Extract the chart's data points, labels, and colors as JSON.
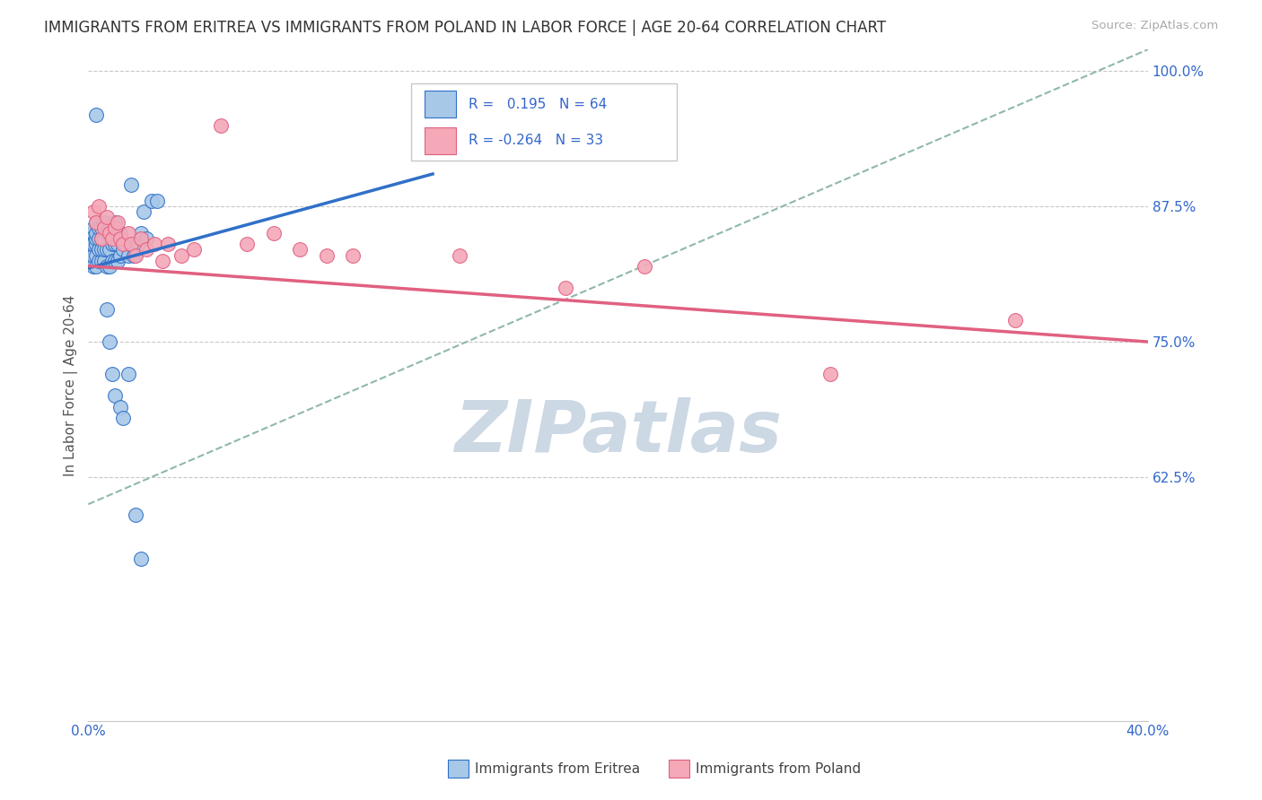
{
  "title": "IMMIGRANTS FROM ERITREA VS IMMIGRANTS FROM POLAND IN LABOR FORCE | AGE 20-64 CORRELATION CHART",
  "source": "Source: ZipAtlas.com",
  "ylabel": "In Labor Force | Age 20-64",
  "xmin": 0.0,
  "xmax": 0.4,
  "ymin": 0.4,
  "ymax": 1.02,
  "xticks": [
    0.0,
    0.05,
    0.1,
    0.15,
    0.2,
    0.25,
    0.3,
    0.35,
    0.4
  ],
  "xtick_labels": [
    "0.0%",
    "",
    "",
    "",
    "",
    "",
    "",
    "",
    "40.0%"
  ],
  "ytick_positions": [
    0.625,
    0.75,
    0.875,
    1.0
  ],
  "ytick_labels": [
    "62.5%",
    "75.0%",
    "87.5%",
    "100.0%"
  ],
  "legend_R1": "0.195",
  "legend_N1": "64",
  "legend_R2": "-0.264",
  "legend_N2": "33",
  "color_eritrea": "#a8c8e8",
  "color_poland": "#f4a8b8",
  "color_line_eritrea": "#3070c8",
  "color_line_poland": "#e06080",
  "color_dashed": "#90b8a8",
  "background_color": "#ffffff",
  "grid_color": "#c8c8c8",
  "axis_label_color": "#3366cc",
  "title_color": "#333333",
  "watermark_color": "#ccd8e4",
  "eritrea_scatter_x": [
    0.001,
    0.001,
    0.001,
    0.001,
    0.002,
    0.002,
    0.002,
    0.002,
    0.002,
    0.003,
    0.003,
    0.003,
    0.003,
    0.003,
    0.003,
    0.004,
    0.004,
    0.004,
    0.004,
    0.005,
    0.005,
    0.005,
    0.005,
    0.006,
    0.006,
    0.006,
    0.006,
    0.007,
    0.007,
    0.007,
    0.008,
    0.008,
    0.008,
    0.009,
    0.009,
    0.01,
    0.01,
    0.01,
    0.011,
    0.011,
    0.012,
    0.012,
    0.013,
    0.014,
    0.015,
    0.016,
    0.017,
    0.018,
    0.019,
    0.02,
    0.021,
    0.022,
    0.024,
    0.026,
    0.007,
    0.008,
    0.009,
    0.01,
    0.012,
    0.013,
    0.015,
    0.018,
    0.02,
    0.003
  ],
  "eritrea_scatter_y": [
    0.835,
    0.84,
    0.845,
    0.85,
    0.82,
    0.83,
    0.84,
    0.85,
    0.855,
    0.82,
    0.83,
    0.84,
    0.845,
    0.85,
    0.86,
    0.825,
    0.835,
    0.845,
    0.855,
    0.825,
    0.835,
    0.845,
    0.855,
    0.825,
    0.835,
    0.845,
    0.86,
    0.82,
    0.835,
    0.85,
    0.82,
    0.835,
    0.855,
    0.825,
    0.84,
    0.825,
    0.84,
    0.86,
    0.825,
    0.84,
    0.83,
    0.85,
    0.835,
    0.84,
    0.83,
    0.895,
    0.83,
    0.835,
    0.84,
    0.85,
    0.87,
    0.845,
    0.88,
    0.88,
    0.78,
    0.75,
    0.72,
    0.7,
    0.69,
    0.68,
    0.72,
    0.59,
    0.55,
    0.96
  ],
  "poland_scatter_x": [
    0.002,
    0.003,
    0.004,
    0.005,
    0.006,
    0.007,
    0.008,
    0.009,
    0.01,
    0.011,
    0.012,
    0.013,
    0.015,
    0.016,
    0.018,
    0.02,
    0.022,
    0.025,
    0.028,
    0.03,
    0.035,
    0.04,
    0.05,
    0.06,
    0.07,
    0.08,
    0.09,
    0.1,
    0.14,
    0.18,
    0.21,
    0.28,
    0.35
  ],
  "poland_scatter_y": [
    0.87,
    0.86,
    0.875,
    0.845,
    0.855,
    0.865,
    0.85,
    0.845,
    0.855,
    0.86,
    0.845,
    0.84,
    0.85,
    0.84,
    0.83,
    0.845,
    0.835,
    0.84,
    0.825,
    0.84,
    0.83,
    0.835,
    0.95,
    0.84,
    0.85,
    0.835,
    0.83,
    0.83,
    0.83,
    0.8,
    0.82,
    0.72,
    0.77
  ],
  "eritrea_line_x0": 0.0,
  "eritrea_line_x1": 0.13,
  "eritrea_line_y0": 0.818,
  "eritrea_line_y1": 0.905,
  "poland_line_x0": 0.0,
  "poland_line_x1": 0.4,
  "poland_line_y0": 0.82,
  "poland_line_y1": 0.75,
  "dashed_line_x0": 0.0,
  "dashed_line_x1": 0.4,
  "dashed_line_y0": 0.6,
  "dashed_line_y1": 1.02,
  "figsize": [
    14.06,
    8.92
  ],
  "dpi": 100
}
